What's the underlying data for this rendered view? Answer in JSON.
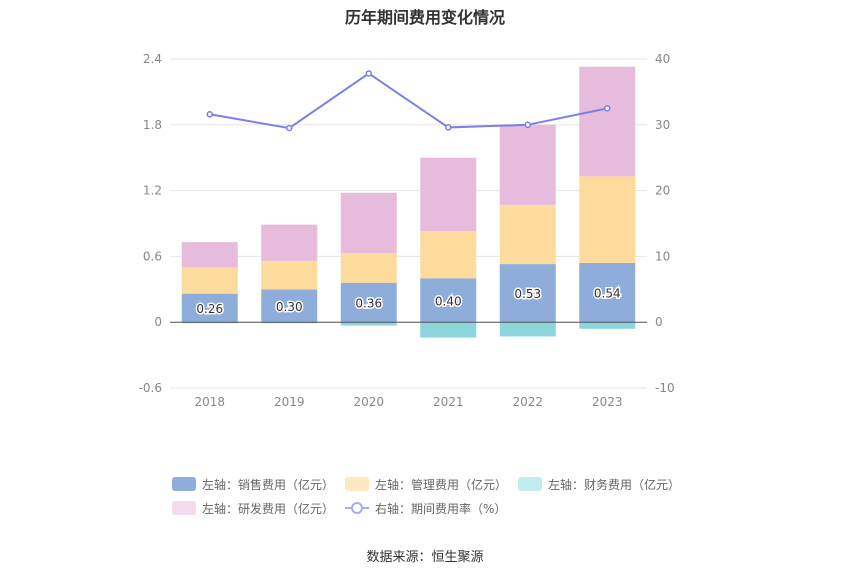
{
  "chart_data": {
    "type": "bar",
    "stacked": true,
    "title": "历年期间费用变化情况",
    "categories": [
      "2018",
      "2019",
      "2020",
      "2021",
      "2022",
      "2023"
    ],
    "left_axis": {
      "ticks": [
        "2.4",
        "1.8",
        "1.2",
        "0.6",
        "0",
        "-0.6"
      ],
      "ylim": [
        -0.6,
        2.4
      ]
    },
    "right_axis": {
      "ticks": [
        "40",
        "30",
        "20",
        "10",
        "0",
        "-10"
      ],
      "ylim": [
        -10,
        40
      ]
    },
    "series": [
      {
        "name": "左轴：销售费用（亿元）",
        "axis": "left",
        "color": "#8eadda",
        "values": [
          0.26,
          0.3,
          0.36,
          0.4,
          0.53,
          0.54
        ],
        "labels": [
          "0.26",
          "0.30",
          "0.36",
          "0.40",
          "0.53",
          "0.54"
        ]
      },
      {
        "name": "左轴：管理费用（亿元）",
        "axis": "left",
        "color": "#fddb9c",
        "values": [
          0.24,
          0.26,
          0.27,
          0.43,
          0.54,
          0.79
        ]
      },
      {
        "name": "左轴：财务费用（亿元）",
        "axis": "left",
        "color": "#8bd5db",
        "legend_color": "#c3ecee",
        "values": [
          -0.01,
          -0.01,
          -0.03,
          -0.14,
          -0.13,
          -0.06
        ]
      },
      {
        "name": "左轴：研发费用（亿元）",
        "axis": "left",
        "color": "#e6bbdb",
        "legend_color": "#f3dbed",
        "values": [
          0.23,
          0.33,
          0.55,
          0.67,
          0.73,
          1.0
        ]
      },
      {
        "name": "右轴：期间费用率（%）",
        "axis": "right",
        "type": "line",
        "color": "#7b7fe8",
        "values": [
          31.6,
          29.5,
          37.8,
          29.6,
          30.0,
          32.5
        ]
      }
    ]
  },
  "source": "数据来源：恒生聚源"
}
